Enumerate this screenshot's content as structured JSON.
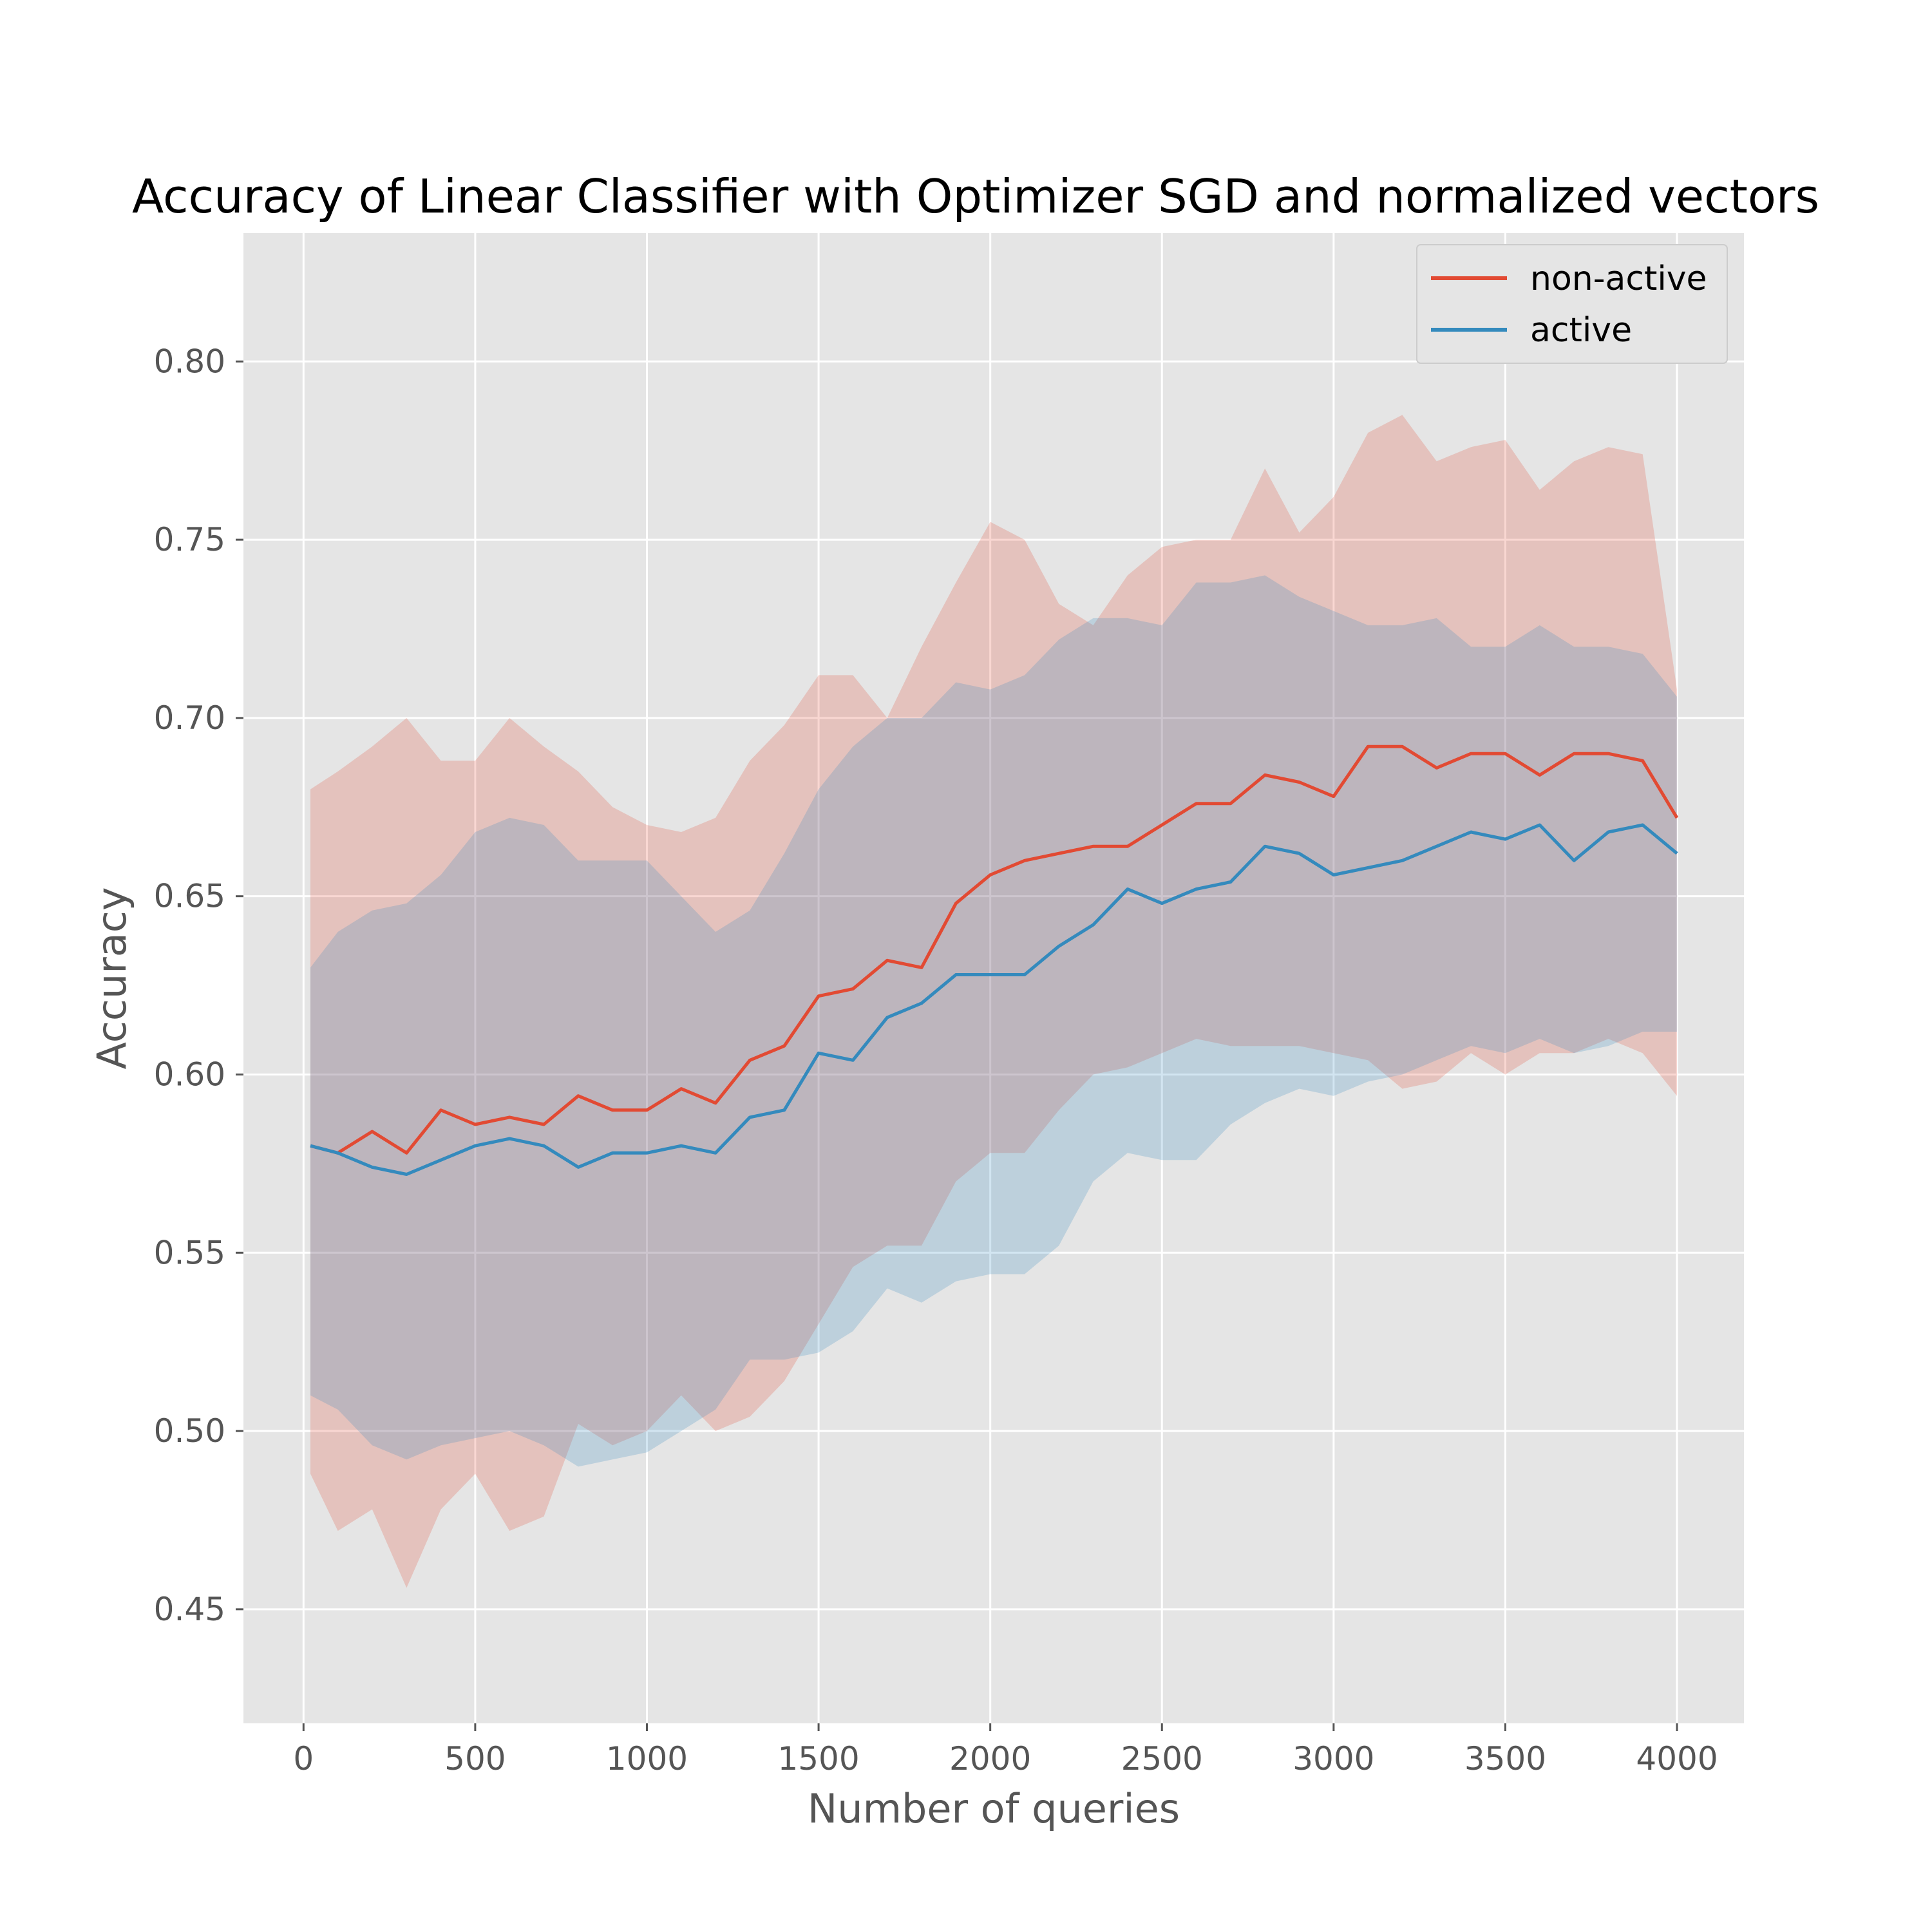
{
  "chart_data": {
    "type": "line",
    "title": "Accuracy of Linear Classifier with Optimizer SGD and normalized vectors",
    "xlabel": "Number of queries",
    "ylabel": "Accuracy",
    "xlim": [
      -175,
      4195
    ],
    "ylim": [
      0.418,
      0.836
    ],
    "x_ticks": [
      0,
      500,
      1000,
      1500,
      2000,
      2500,
      3000,
      3500,
      4000
    ],
    "x_tick_labels": [
      "0",
      "500",
      "1000",
      "1500",
      "2000",
      "2500",
      "3000",
      "3500",
      "4000"
    ],
    "y_ticks": [
      0.45,
      0.5,
      0.55,
      0.6,
      0.65,
      0.7,
      0.75,
      0.8
    ],
    "y_tick_labels": [
      "0.45",
      "0.50",
      "0.55",
      "0.60",
      "0.65",
      "0.70",
      "0.75",
      "0.80"
    ],
    "grid": true,
    "legend_position": "top-right",
    "shaded_band": "mean ± spread",
    "series": [
      {
        "name": "non-active",
        "color": "#E24A33",
        "x": [
          20,
          100,
          200,
          300,
          400,
          500,
          600,
          700,
          800,
          900,
          1000,
          1100,
          1200,
          1300,
          1400,
          1500,
          1600,
          1700,
          1800,
          1900,
          2000,
          2100,
          2200,
          2300,
          2400,
          2500,
          2600,
          2700,
          2800,
          2900,
          3000,
          3100,
          3200,
          3300,
          3400,
          3500,
          3600,
          3700,
          3800,
          3900,
          4000
        ],
        "values": [
          0.58,
          0.578,
          0.584,
          0.578,
          0.59,
          0.586,
          0.588,
          0.586,
          0.594,
          0.59,
          0.59,
          0.596,
          0.592,
          0.604,
          0.608,
          0.622,
          0.624,
          0.632,
          0.63,
          0.648,
          0.656,
          0.66,
          0.662,
          0.664,
          0.664,
          0.67,
          0.676,
          0.676,
          0.684,
          0.682,
          0.678,
          0.692,
          0.692,
          0.686,
          0.69,
          0.69,
          0.684,
          0.69,
          0.69,
          0.688,
          0.672
        ],
        "upper": [
          0.68,
          0.685,
          0.692,
          0.7,
          0.688,
          0.688,
          0.7,
          0.692,
          0.685,
          0.675,
          0.67,
          0.668,
          0.672,
          0.688,
          0.698,
          0.712,
          0.712,
          0.7,
          0.72,
          0.738,
          0.755,
          0.75,
          0.732,
          0.726,
          0.74,
          0.748,
          0.75,
          0.75,
          0.77,
          0.752,
          0.762,
          0.78,
          0.785,
          0.772,
          0.776,
          0.778,
          0.764,
          0.772,
          0.776,
          0.774,
          0.708
        ],
        "lower": [
          0.488,
          0.472,
          0.478,
          0.456,
          0.478,
          0.488,
          0.472,
          0.476,
          0.502,
          0.496,
          0.5,
          0.51,
          0.5,
          0.504,
          0.514,
          0.53,
          0.546,
          0.552,
          0.552,
          0.57,
          0.578,
          0.578,
          0.59,
          0.6,
          0.602,
          0.606,
          0.61,
          0.608,
          0.608,
          0.608,
          0.606,
          0.604,
          0.596,
          0.598,
          0.606,
          0.6,
          0.606,
          0.606,
          0.61,
          0.606,
          0.594
        ]
      },
      {
        "name": "active",
        "color": "#348ABD",
        "x": [
          20,
          100,
          200,
          300,
          400,
          500,
          600,
          700,
          800,
          900,
          1000,
          1100,
          1200,
          1300,
          1400,
          1500,
          1600,
          1700,
          1800,
          1900,
          2000,
          2100,
          2200,
          2300,
          2400,
          2500,
          2600,
          2700,
          2800,
          2900,
          3000,
          3100,
          3200,
          3300,
          3400,
          3500,
          3600,
          3700,
          3800,
          3900,
          4000
        ],
        "values": [
          0.58,
          0.578,
          0.574,
          0.572,
          0.576,
          0.58,
          0.582,
          0.58,
          0.574,
          0.578,
          0.578,
          0.58,
          0.578,
          0.588,
          0.59,
          0.606,
          0.604,
          0.616,
          0.62,
          0.628,
          0.628,
          0.628,
          0.636,
          0.642,
          0.652,
          0.648,
          0.652,
          0.654,
          0.664,
          0.662,
          0.656,
          0.658,
          0.66,
          0.664,
          0.668,
          0.666,
          0.67,
          0.66,
          0.668,
          0.67,
          0.662
        ],
        "upper": [
          0.63,
          0.64,
          0.646,
          0.648,
          0.656,
          0.668,
          0.672,
          0.67,
          0.66,
          0.66,
          0.66,
          0.65,
          0.64,
          0.646,
          0.662,
          0.68,
          0.692,
          0.7,
          0.7,
          0.71,
          0.708,
          0.712,
          0.722,
          0.728,
          0.728,
          0.726,
          0.738,
          0.738,
          0.74,
          0.734,
          0.73,
          0.726,
          0.726,
          0.728,
          0.72,
          0.72,
          0.726,
          0.72,
          0.72,
          0.718,
          0.706
        ],
        "lower": [
          0.51,
          0.506,
          0.496,
          0.492,
          0.496,
          0.498,
          0.5,
          0.496,
          0.49,
          0.492,
          0.494,
          0.5,
          0.506,
          0.52,
          0.52,
          0.522,
          0.528,
          0.54,
          0.536,
          0.542,
          0.544,
          0.544,
          0.552,
          0.57,
          0.578,
          0.576,
          0.576,
          0.586,
          0.592,
          0.596,
          0.594,
          0.598,
          0.6,
          0.604,
          0.608,
          0.606,
          0.61,
          0.606,
          0.608,
          0.612,
          0.612
        ]
      }
    ]
  }
}
